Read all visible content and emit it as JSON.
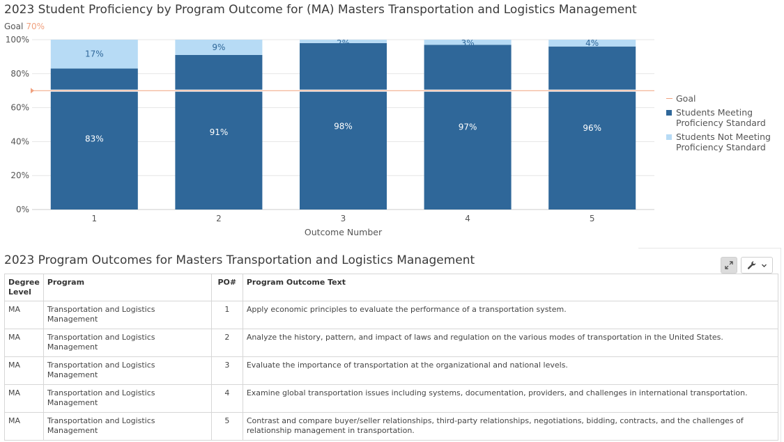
{
  "chart_title": "2023 Student Proficiency by Program Outcome for (MA) Masters Transportation and Logistics Management",
  "goal": {
    "label": "Goal",
    "value_text": "70%",
    "value": 70,
    "color": "#f0a17f"
  },
  "chart_data": {
    "type": "bar",
    "stacked": true,
    "categories": [
      "1",
      "2",
      "3",
      "4",
      "5"
    ],
    "series": [
      {
        "name": "Students Meeting Proficiency Standard",
        "values": [
          83,
          91,
          98,
          97,
          96
        ],
        "labels": [
          "83%",
          "91%",
          "98%",
          "97%",
          "96%"
        ],
        "color": "#2f6799"
      },
      {
        "name": "Students Not Meeting Proficiency Standard",
        "values": [
          17,
          9,
          2,
          3,
          4
        ],
        "labels": [
          "17%",
          "9%",
          "2%",
          "3%",
          "4%"
        ],
        "color": "#b7dbf5"
      }
    ],
    "goal_line": {
      "name": "Goal",
      "value": 70,
      "color": "#f0a17f"
    },
    "xlabel": "Outcome Number",
    "ylabel": "",
    "ylim": [
      0,
      100
    ],
    "yticks": [
      "0%",
      "20%",
      "40%",
      "60%",
      "80%",
      "100%"
    ],
    "grid": true,
    "legend_position": "right"
  },
  "table": {
    "title": "2023 Program Outcomes for Masters Transportation and Logistics Management",
    "tools": {
      "expand_icon": "expand-icon",
      "settings_icon": "wrench-icon",
      "dropdown_icon": "chevron-down-icon"
    },
    "headers": {
      "degree": "Degree Level",
      "program": "Program",
      "po": "PO#",
      "text": "Program Outcome Text"
    },
    "rows": [
      {
        "degree": "MA",
        "program": "Transportation and Logistics Management",
        "po": "1",
        "text": "Apply economic principles to evaluate the performance of a transportation system."
      },
      {
        "degree": "MA",
        "program": "Transportation and Logistics Management",
        "po": "2",
        "text": "Analyze the history, pattern, and impact of laws and regulation on the various modes of transportation in the United States."
      },
      {
        "degree": "MA",
        "program": "Transportation and Logistics Management",
        "po": "3",
        "text": "Evaluate the importance of transportation at the organizational and national levels."
      },
      {
        "degree": "MA",
        "program": "Transportation and Logistics Management",
        "po": "4",
        "text": "Examine global transportation issues including systems, documentation, providers, and challenges in international transportation."
      },
      {
        "degree": "MA",
        "program": "Transportation and Logistics Management",
        "po": "5",
        "text": "Contrast and compare buyer/seller relationships, third-party relationships, negotiations, bidding, contracts, and the challenges of relationship management in transportation."
      }
    ]
  }
}
